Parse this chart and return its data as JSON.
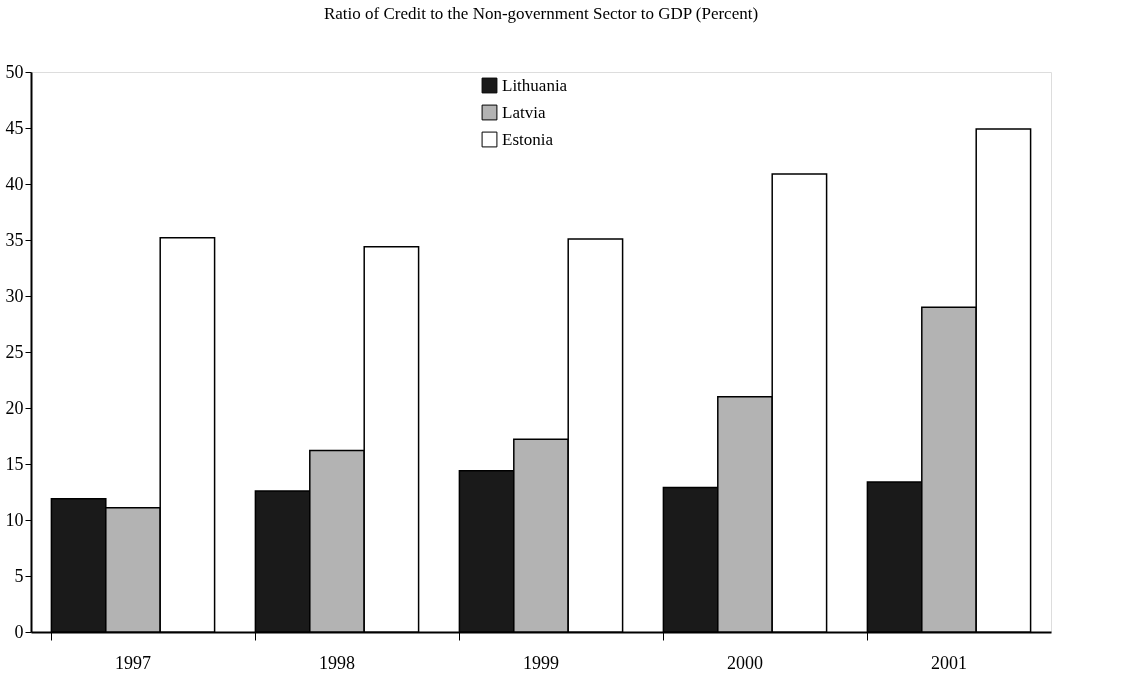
{
  "chart_data": {
    "type": "bar",
    "title": "Ratio of Credit to the Non-government Sector  to GDP (Percent)",
    "categories": [
      "1997",
      "1998",
      "1999",
      "2000",
      "2001"
    ],
    "series": [
      {
        "name": "Lithuania",
        "color": "#1a1a1a",
        "values": [
          11.9,
          12.6,
          14.4,
          12.9,
          13.4
        ]
      },
      {
        "name": "Latvia",
        "color": "#b3b3b3",
        "values": [
          11.1,
          16.2,
          17.2,
          21.0,
          29.0
        ]
      },
      {
        "name": "Estonia",
        "color": "#ffffff",
        "values": [
          35.2,
          34.4,
          35.1,
          40.9,
          44.9
        ]
      }
    ],
    "ylim": [
      0,
      50
    ],
    "yticks": [
      0,
      5,
      10,
      15,
      20,
      25,
      30,
      35,
      40,
      45,
      50
    ],
    "grid": false,
    "legend": "top"
  }
}
